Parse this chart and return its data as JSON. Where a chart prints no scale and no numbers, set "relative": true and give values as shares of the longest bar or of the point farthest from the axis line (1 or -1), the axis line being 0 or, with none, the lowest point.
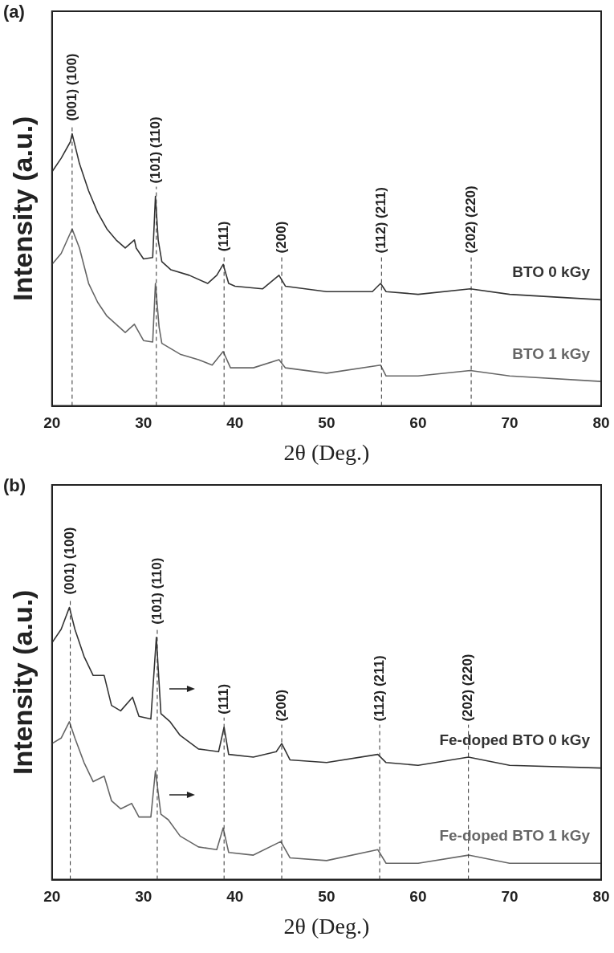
{
  "chart_data": [
    {
      "type": "line",
      "title": "(a)",
      "xlabel": "2θ (Deg.)",
      "ylabel": "Intensity (a.u.)",
      "relative": true,
      "xlim": [
        20,
        80
      ],
      "xticks": [
        20,
        30,
        40,
        50,
        60,
        70,
        80
      ],
      "grid": false,
      "legend": false,
      "marker": "none",
      "line_style": "solid",
      "series": [
        {
          "name": "BTO 0 kGy",
          "color": "#333333",
          "x": [
            20,
            21,
            22,
            22.2,
            23,
            24,
            25,
            26,
            27,
            28,
            29,
            29.2,
            30,
            31,
            31.3,
            31.6,
            32,
            33,
            35,
            37,
            38,
            38.7,
            39.3,
            40,
            43,
            44.8,
            45.5,
            50,
            55,
            55.9,
            56.5,
            60,
            65.7,
            70,
            80
          ],
          "values": [
            0.86,
            0.91,
            0.97,
            1,
            0.89,
            0.79,
            0.71,
            0.65,
            0.61,
            0.58,
            0.61,
            0.58,
            0.54,
            0.545,
            0.77,
            0.61,
            0.53,
            0.5,
            0.48,
            0.45,
            0.48,
            0.52,
            0.45,
            0.44,
            0.43,
            0.48,
            0.44,
            0.42,
            0.42,
            0.45,
            0.42,
            0.41,
            0.43,
            0.41,
            0.39
          ]
        },
        {
          "name": "BTO 1 kGy",
          "color": "#666666",
          "x": [
            20,
            21,
            22.2,
            23,
            24,
            25,
            26,
            27,
            28,
            29,
            30,
            31,
            31.3,
            31.7,
            32,
            34,
            36,
            37.5,
            38.7,
            39.5,
            42,
            44.8,
            45.5,
            50,
            55.9,
            56.5,
            60,
            65.7,
            70,
            80
          ],
          "values": [
            0.52,
            0.56,
            0.65,
            0.58,
            0.45,
            0.38,
            0.33,
            0.3,
            0.27,
            0.3,
            0.24,
            0.235,
            0.45,
            0.29,
            0.23,
            0.19,
            0.17,
            0.15,
            0.2,
            0.14,
            0.14,
            0.17,
            0.14,
            0.12,
            0.15,
            0.11,
            0.11,
            0.13,
            0.11,
            0.09
          ]
        }
      ],
      "ref_lines": [
        {
          "axis": "x",
          "value": 22.2,
          "line_style": "dashed",
          "color": "#333333"
        },
        {
          "axis": "x",
          "value": 31.4,
          "line_style": "dashed",
          "color": "#333333"
        },
        {
          "axis": "x",
          "value": 38.8,
          "line_style": "dashed",
          "color": "#333333"
        },
        {
          "axis": "x",
          "value": 45.1,
          "line_style": "dashed",
          "color": "#333333"
        },
        {
          "axis": "x",
          "value": 56,
          "line_style": "dashed",
          "color": "#333333"
        },
        {
          "axis": "x",
          "value": 65.8,
          "line_style": "dashed",
          "color": "#333333"
        }
      ],
      "annotations": [
        {
          "text": "(001) (100)",
          "x": 22.2,
          "y": 1
        },
        {
          "text": "(101) (110)",
          "x": 31.4,
          "y": 0.77
        },
        {
          "text": "(111)",
          "x": 38.8,
          "y": 0.52
        },
        {
          "text": "(200)",
          "x": 45.1,
          "y": 0.48
        },
        {
          "text": "(112) (211)",
          "x": 56,
          "y": 0.45
        },
        {
          "text": "(202) (220)",
          "x": 65.8,
          "y": 0.43
        }
      ]
    },
    {
      "type": "line",
      "title": "(b)",
      "xlabel": "2θ (Deg.)",
      "ylabel": "Intensity (a.u.)",
      "relative": true,
      "xlim": [
        20,
        80
      ],
      "xticks": [
        20,
        30,
        40,
        50,
        60,
        70,
        80
      ],
      "grid": false,
      "legend": false,
      "marker": "none",
      "line_style": "solid",
      "series": [
        {
          "name": "Fe-doped BTO 0 kGy",
          "color": "#333333",
          "x": [
            20,
            21,
            21.9,
            22.5,
            23.5,
            24.5,
            25.7,
            26.5,
            27.5,
            28.8,
            29.5,
            30.8,
            31.4,
            31.9,
            32.9,
            34,
            36,
            38.2,
            38.8,
            39.3,
            42,
            44.5,
            45.1,
            46,
            50,
            55.6,
            56.5,
            60,
            65.5,
            70,
            80
          ],
          "values": [
            0.87,
            0.92,
            1,
            0.92,
            0.82,
            0.75,
            0.75,
            0.64,
            0.62,
            0.67,
            0.6,
            0.59,
            0.89,
            0.61,
            0.58,
            0.53,
            0.48,
            0.47,
            0.56,
            0.46,
            0.45,
            0.47,
            0.5,
            0.44,
            0.43,
            0.46,
            0.43,
            0.42,
            0.45,
            0.42,
            0.41
          ]
        },
        {
          "name": "Fe-doped BTO 1 kGy",
          "color": "#666666",
          "x": [
            20,
            21,
            21.9,
            22.5,
            23.5,
            24.5,
            25.7,
            26.5,
            27.5,
            28.7,
            29.5,
            30.8,
            31.3,
            31.9,
            32.7,
            34,
            36,
            38,
            38.7,
            39.3,
            42,
            45,
            46,
            50,
            55.6,
            56.5,
            60,
            65.5,
            70,
            80
          ],
          "values": [
            0.5,
            0.52,
            0.58,
            0.52,
            0.43,
            0.36,
            0.38,
            0.29,
            0.26,
            0.28,
            0.23,
            0.23,
            0.4,
            0.24,
            0.22,
            0.16,
            0.12,
            0.11,
            0.19,
            0.1,
            0.09,
            0.14,
            0.08,
            0.07,
            0.11,
            0.06,
            0.06,
            0.09,
            0.06,
            0.06
          ]
        }
      ],
      "ref_lines": [
        {
          "axis": "x",
          "value": 22,
          "line_style": "dashed",
          "color": "#333333"
        },
        {
          "axis": "x",
          "value": 31.5,
          "line_style": "dashed",
          "color": "#333333"
        },
        {
          "axis": "x",
          "value": 38.8,
          "line_style": "dashed",
          "color": "#333333"
        },
        {
          "axis": "x",
          "value": 45.1,
          "line_style": "dashed",
          "color": "#333333"
        },
        {
          "axis": "x",
          "value": 55.8,
          "line_style": "dashed",
          "color": "#333333"
        },
        {
          "axis": "x",
          "value": 65.5,
          "line_style": "dashed",
          "color": "#333333"
        }
      ],
      "annotations": [
        {
          "text": "(001) (100)",
          "x": 22,
          "y": 1
        },
        {
          "text": "(101) (110)",
          "x": 31.5,
          "y": 0.89
        },
        {
          "text": "(111)",
          "x": 38.8,
          "y": 0.56
        },
        {
          "text": "(200)",
          "x": 45.1,
          "y": 0.5
        },
        {
          "text": "(112) (211)",
          "x": 55.8,
          "y": 0.46
        },
        {
          "text": "(202) (220)",
          "x": 65.5,
          "y": 0.45
        }
      ]
    }
  ]
}
